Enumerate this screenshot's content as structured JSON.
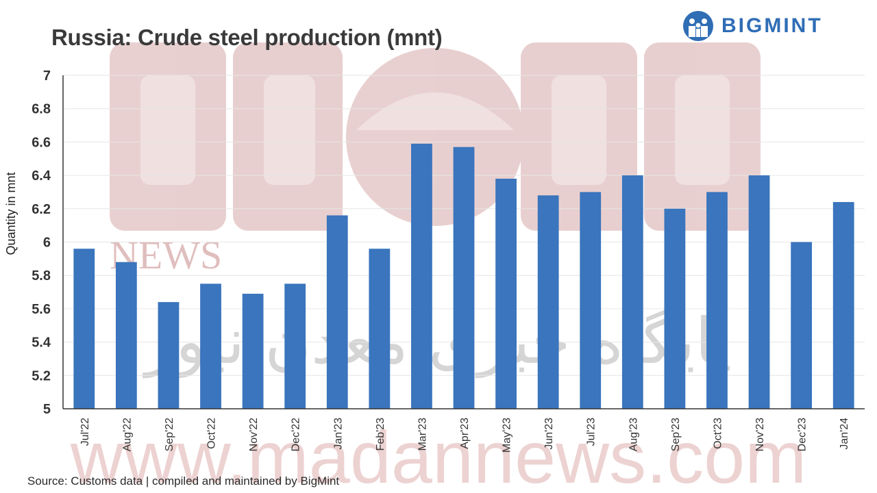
{
  "title": "Russia: Crude steel production (mnt)",
  "logo": {
    "text": "BIGMINT",
    "icon": "bigmint-logo-icon"
  },
  "source": "Source: Customs data | compiled and maintained by BigMint",
  "watermark": {
    "text": "NEWS",
    "url_text": "www.madannews.com",
    "persian_text": "پایگاه خبری معدن نیوز"
  },
  "colors": {
    "bar": "#3a75bd",
    "grid": "#e6e6e6",
    "axis": "#333333",
    "title": "#3a3a3a",
    "logo": "#2f6db5"
  },
  "chart_data": {
    "type": "bar",
    "title": "Russia: Crude steel production (mnt)",
    "xlabel": "",
    "ylabel": "Quantity in mnt",
    "ylim": [
      5,
      7
    ],
    "yticks": [
      "5",
      "5.2",
      "5.4",
      "5.6",
      "5.8",
      "6",
      "6.2",
      "6.4",
      "6.6",
      "6.8",
      "7"
    ],
    "grid": true,
    "categories": [
      "Jul'22",
      "Aug'22",
      "Sep'22",
      "Oct'22",
      "Nov'22",
      "Dec'22",
      "Jan'23",
      "Feb'23",
      "Mar'23",
      "Apr'23",
      "May'23",
      "Jun'23",
      "Jul'23",
      "Aug'23",
      "Sep'23",
      "Oct'23",
      "Nov'23",
      "Dec'23",
      "Jan'24"
    ],
    "values": [
      5.96,
      5.88,
      5.64,
      5.75,
      5.69,
      5.75,
      6.16,
      5.96,
      6.59,
      6.57,
      6.38,
      6.28,
      6.3,
      6.4,
      6.2,
      6.3,
      6.4,
      6.0,
      6.24
    ]
  }
}
